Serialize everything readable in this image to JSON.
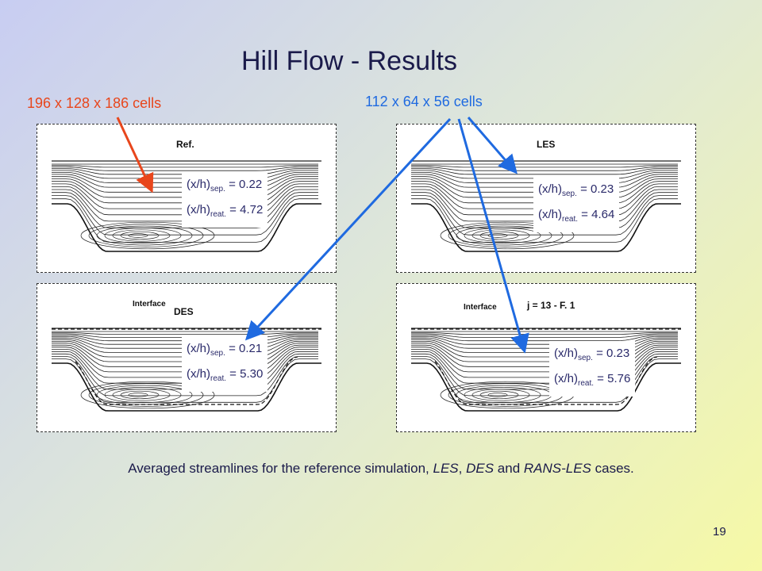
{
  "title": "Hill Flow - Results",
  "grid_fine": "196 x 128 x 186 cells",
  "grid_coarse": "112 x 64 x 56 cells",
  "panels": {
    "ref": {
      "label": "Ref.",
      "sep_pre": "(x/h)",
      "sep_sub": "sep.",
      "sep_val": " = 0.22",
      "reat_pre": "(x/h)",
      "reat_sub": "reat.",
      "reat_val": " = 4.72"
    },
    "les": {
      "label": "LES",
      "sep_pre": "(x/h)",
      "sep_sub": "sep.",
      "sep_val": " = 0.23",
      "reat_pre": "(x/h)",
      "reat_sub": "reat.",
      "reat_val": " = 4.64"
    },
    "des": {
      "label": "DES",
      "interface": "Interface",
      "sep_pre": "(x/h)",
      "sep_sub": "sep.",
      "sep_val": " = 0.21",
      "reat_pre": "(x/h)",
      "reat_sub": "reat.",
      "reat_val": " = 5.30"
    },
    "rans": {
      "label": "j = 13 - F. 1",
      "interface": "Interface",
      "sep_pre": "(x/h)",
      "sep_sub": "sep.",
      "sep_val": " = 0.23",
      "reat_pre": "(x/h)",
      "reat_sub": "reat.",
      "reat_val": " = 5.76"
    }
  },
  "caption_parts": [
    "Averaged streamlines for the reference simulation, ",
    "LES",
    ", ",
    "DES",
    " and ",
    "RANS-LES",
    " cases."
  ],
  "page_number": "19",
  "colors": {
    "fine_arrow": "#e8461c",
    "coarse_arrow": "#1f6ae0",
    "title": "#1a1a4a"
  }
}
